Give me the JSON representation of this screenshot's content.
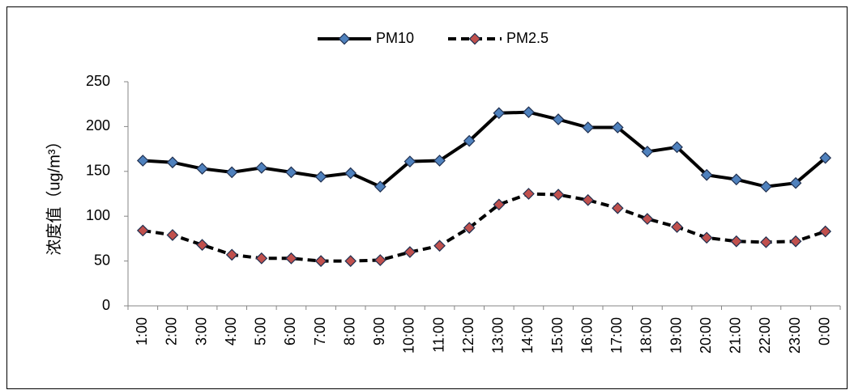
{
  "chart_data": {
    "type": "line",
    "y_label": "浓度值（ug/m³）",
    "categories": [
      "1:00",
      "2:00",
      "3:00",
      "4:00",
      "5:00",
      "6:00",
      "7:00",
      "8:00",
      "9:00",
      "10:00",
      "11:00",
      "12:00",
      "13:00",
      "14:00",
      "15:00",
      "16:00",
      "17:00",
      "18:00",
      "19:00",
      "20:00",
      "21:00",
      "22:00",
      "23:00",
      "0:00"
    ],
    "series": [
      {
        "name": "PM10",
        "color": "#000000",
        "marker_color": "#4f81bd",
        "dashed": false,
        "values": [
          162,
          160,
          153,
          149,
          154,
          149,
          144,
          148,
          133,
          161,
          162,
          184,
          215,
          216,
          208,
          199,
          199,
          172,
          177,
          146,
          141,
          133,
          137,
          165
        ]
      },
      {
        "name": "PM2.5",
        "color": "#000000",
        "marker_color": "#c0504d",
        "dashed": true,
        "values": [
          84,
          79,
          68,
          57,
          53,
          53,
          50,
          50,
          51,
          60,
          67,
          87,
          113,
          125,
          124,
          118,
          109,
          97,
          88,
          76,
          72,
          71,
          72,
          83
        ]
      }
    ],
    "ylim": [
      0,
      250
    ],
    "yticks": [
      0,
      50,
      100,
      150,
      200,
      250
    ],
    "grid": false,
    "legend": "top"
  }
}
